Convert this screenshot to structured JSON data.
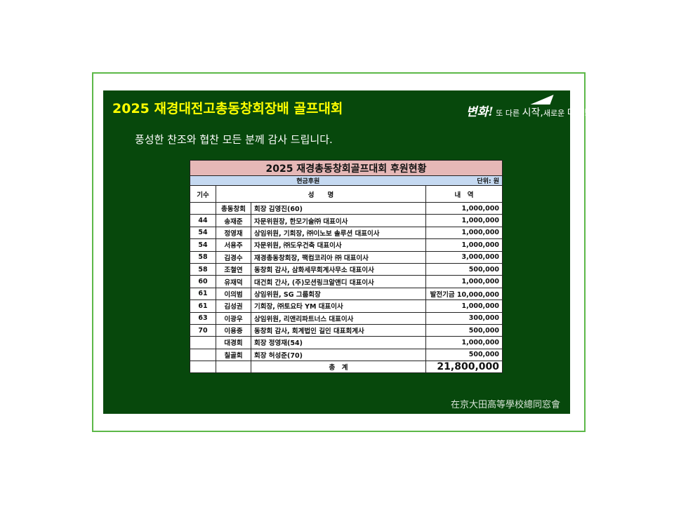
{
  "title": "2025 재경대전고총동창회장배 골프대회",
  "subtitle": "풍성한 찬조와 협찬 모든 분께 감사 드립니다.",
  "slogan": {
    "brand": "변화!",
    "text1": "또 다른",
    "text2": "시작,",
    "text3": "새로운",
    "text4": "미래!"
  },
  "footer": "在京大田高等學校總同窓會",
  "table": {
    "title": "2025 재경총동창회골프대회 후원현황",
    "section": "현금후원",
    "unit": "단위: 원",
    "headers": [
      "기수",
      "성　　명",
      "내　역"
    ],
    "rows": [
      [
        "",
        "총동창회",
        "회장 김영진(60)",
        "1,000,000"
      ],
      [
        "44",
        "송재준",
        "자문위원장, 한모기술㈜ 대표이사",
        "1,000,000"
      ],
      [
        "54",
        "정영재",
        "상임위원, 기회장, ㈜이노보 솔루션 대표이사",
        "1,000,000"
      ],
      [
        "54",
        "서용주",
        "자문위원, ㈜도우건축 대표이사",
        "1,000,000"
      ],
      [
        "58",
        "김경수",
        "재경총동창회장,  팩컴코리아 ㈜ 대표이사",
        "3,000,000"
      ],
      [
        "58",
        "조철연",
        "동창회 감사, 삼화세무회계사무소 대표이사",
        "500,000"
      ],
      [
        "60",
        "유재덕",
        "대건회 간사, (주)모션링크알앤디  대표이사",
        "1,000,000"
      ],
      [
        "61",
        "이의범",
        "상임위원, SG 그룹회장",
        "발전기금 10,000,000"
      ],
      [
        "61",
        "김성권",
        "기회장, ㈜토요타 YM 대표이사",
        "1,000,000"
      ],
      [
        "63",
        "이광우",
        "상임위원, 리앤리파트너스 대표이사",
        "300,000"
      ],
      [
        "70",
        "이용중",
        "동창회 감사, 회계법인 길인 대표회계사",
        "500,000"
      ],
      [
        "",
        "대경회",
        "회장 정영재(54)",
        "1,000,000"
      ],
      [
        "",
        "칠골회",
        "회장 허성준(70)",
        "500,000"
      ]
    ],
    "total_label": "총　계",
    "total": "21,800,000"
  }
}
